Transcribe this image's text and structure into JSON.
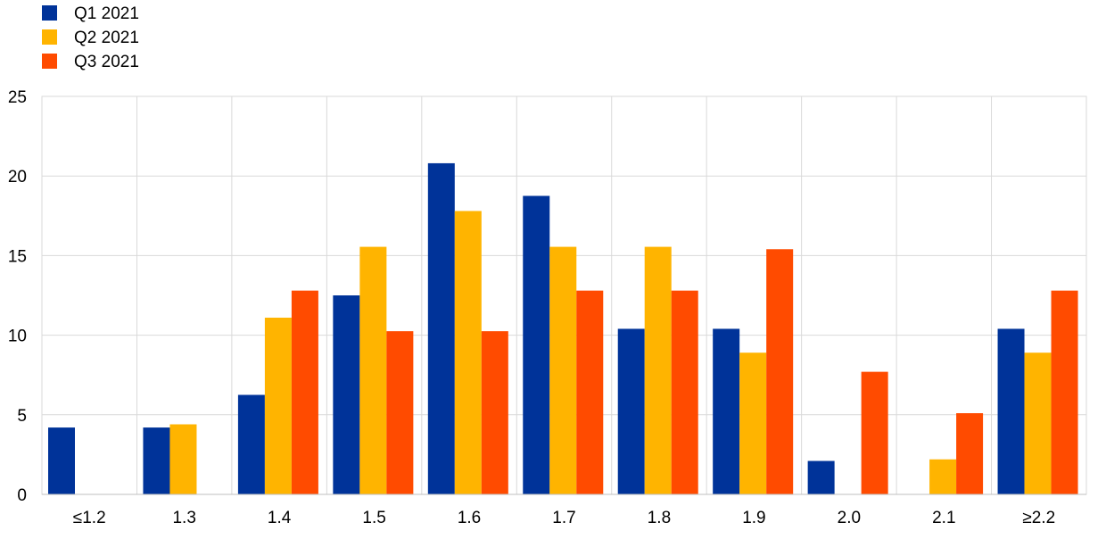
{
  "chart_data": {
    "type": "bar",
    "categories": [
      "≤1.2",
      "1.3",
      "1.4",
      "1.5",
      "1.6",
      "1.7",
      "1.8",
      "1.9",
      "2.0",
      "2.1",
      "≥2.2"
    ],
    "series": [
      {
        "name": "Q1 2021",
        "color": "#003399",
        "values": [
          4.2,
          4.2,
          6.25,
          12.5,
          20.8,
          18.75,
          10.4,
          10.4,
          2.1,
          0,
          10.4
        ]
      },
      {
        "name": "Q2 2021",
        "color": "#FFB400",
        "values": [
          0,
          4.4,
          11.1,
          15.55,
          17.8,
          15.55,
          15.55,
          8.9,
          0,
          2.2,
          8.9
        ]
      },
      {
        "name": "Q3 2021",
        "color": "#FF4B00",
        "values": [
          0,
          0,
          12.8,
          10.25,
          10.25,
          12.8,
          12.8,
          15.4,
          7.7,
          5.1,
          12.8
        ]
      }
    ],
    "ylim": [
      0,
      25
    ],
    "yticks": [
      0,
      5,
      10,
      15,
      20,
      25
    ],
    "grid": true,
    "legend": "top-left",
    "title": "",
    "xlabel": "",
    "ylabel": ""
  }
}
